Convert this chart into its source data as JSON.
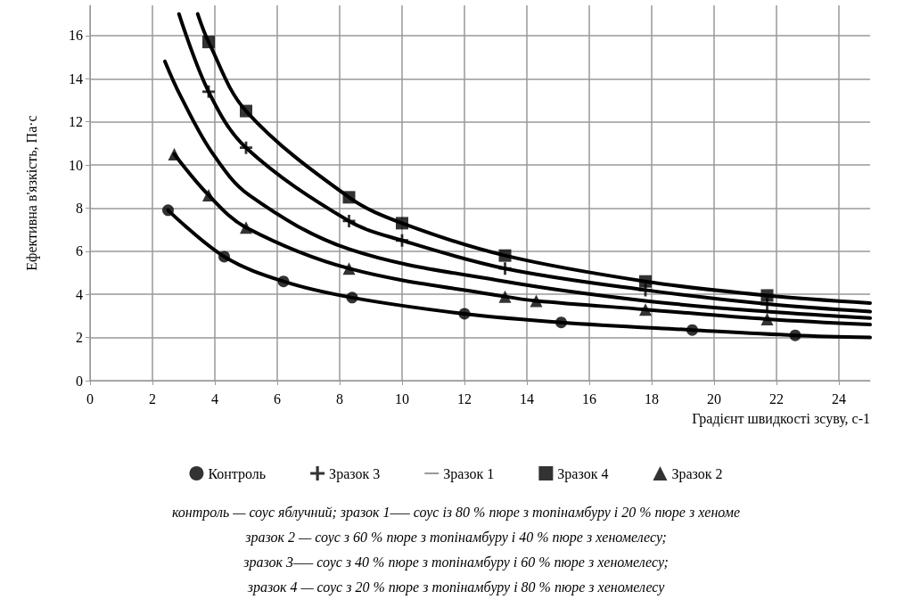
{
  "chart_data": {
    "type": "scatter",
    "xlabel": "Градієнт швидкості зсуву, с-1",
    "ylabel": "Ефективна в'язкість, Па·с",
    "xlim": [
      0,
      25
    ],
    "xticks": [
      0,
      2,
      4,
      6,
      8,
      10,
      12,
      14,
      16,
      18,
      20,
      22,
      24
    ],
    "ylim": [
      0,
      17.4
    ],
    "yticks": [
      0,
      2,
      4,
      6,
      8,
      10,
      12,
      14,
      16
    ],
    "grid": true,
    "legend": "bottom",
    "series": [
      {
        "name": "Контроль",
        "marker": "circle",
        "color": "#000000",
        "x": [
          2.5,
          4.3,
          6.2,
          8.4,
          12,
          15.1,
          19.3,
          22.6
        ],
        "values": [
          7.9,
          5.75,
          4.6,
          3.85,
          3.1,
          2.7,
          2.35,
          2.1
        ]
      },
      {
        "name": "Зразок 3",
        "marker": "cross",
        "color": "#000000",
        "x": [
          3.8,
          5,
          8.3,
          10,
          13.3,
          17.8,
          21.7
        ],
        "values": [
          13.4,
          10.8,
          7.4,
          6.5,
          5.2,
          4.2,
          3.55
        ]
      },
      {
        "name": "Зразок 1",
        "type": "line",
        "marker": "none",
        "color": "#000000",
        "x": [
          2.4,
          2.9,
          3.9,
          5.1,
          8.3,
          13.3,
          17.8,
          21.7,
          25
        ],
        "values": [
          14.8,
          13.2,
          10.6,
          8.6,
          6.1,
          4.6,
          3.7,
          3.2,
          2.9
        ]
      },
      {
        "name": "Зразок 4",
        "marker": "square",
        "color": "#000000",
        "x": [
          3.8,
          5,
          8.3,
          10,
          13.3,
          17.8,
          21.7
        ],
        "values": [
          15.7,
          12.5,
          8.5,
          7.3,
          5.8,
          4.6,
          3.95
        ]
      },
      {
        "name": "Зразок 2",
        "marker": "triangle",
        "color": "#000000",
        "x": [
          2.7,
          3.8,
          5,
          8.3,
          13.3,
          14.3,
          17.8,
          21.7
        ],
        "values": [
          10.5,
          8.6,
          7.1,
          5.2,
          3.9,
          3.7,
          3.3,
          2.85
        ]
      },
      {
        "type": "line",
        "marker": "none",
        "color": "#000000",
        "x": [
          2.5,
          4.3,
          6.2,
          8.4,
          12,
          15.1,
          19.3,
          22.6,
          25
        ],
        "values": [
          7.9,
          5.75,
          4.6,
          3.85,
          3.1,
          2.7,
          2.35,
          2.1,
          2.0
        ]
      },
      {
        "type": "line",
        "marker": "none",
        "color": "#000000",
        "x": [
          2.85,
          3.8,
          5,
          8.3,
          10,
          13.3,
          17.8,
          21.7,
          25
        ],
        "values": [
          17,
          13.4,
          10.8,
          7.4,
          6.5,
          5.2,
          4.2,
          3.55,
          3.2
        ]
      },
      {
        "type": "line",
        "marker": "none",
        "color": "#000000",
        "x": [
          3.45,
          3.8,
          5,
          8.3,
          10,
          13.3,
          17.8,
          21.7,
          25
        ],
        "values": [
          17,
          15.7,
          12.5,
          8.5,
          7.3,
          5.8,
          4.6,
          3.95,
          3.6
        ]
      },
      {
        "type": "line",
        "marker": "none",
        "color": "#000000",
        "x": [
          2.7,
          3.8,
          5,
          8.3,
          13.3,
          14.3,
          17.8,
          21.7,
          25
        ],
        "values": [
          10.5,
          8.6,
          7.1,
          5.2,
          3.9,
          3.7,
          3.3,
          2.85,
          2.6
        ]
      }
    ],
    "annotations": [
      "контроль — соус яблучний; зразок 1—– соус із 80 % пюре з топінамбуру і 20 % пюре з хеноме",
      "зразок 2 — соус з 60 % пюре з топінамбуру і 40 % пюре з хеномелесу;",
      "зразок 3—– соус з 40 % пюре з топінамбуру і 60 % пюре з хеномелесу;",
      "зразок 4 — соус з 20 % пюре з топінамбуру і 80 % пюре з хеномелесу"
    ]
  }
}
